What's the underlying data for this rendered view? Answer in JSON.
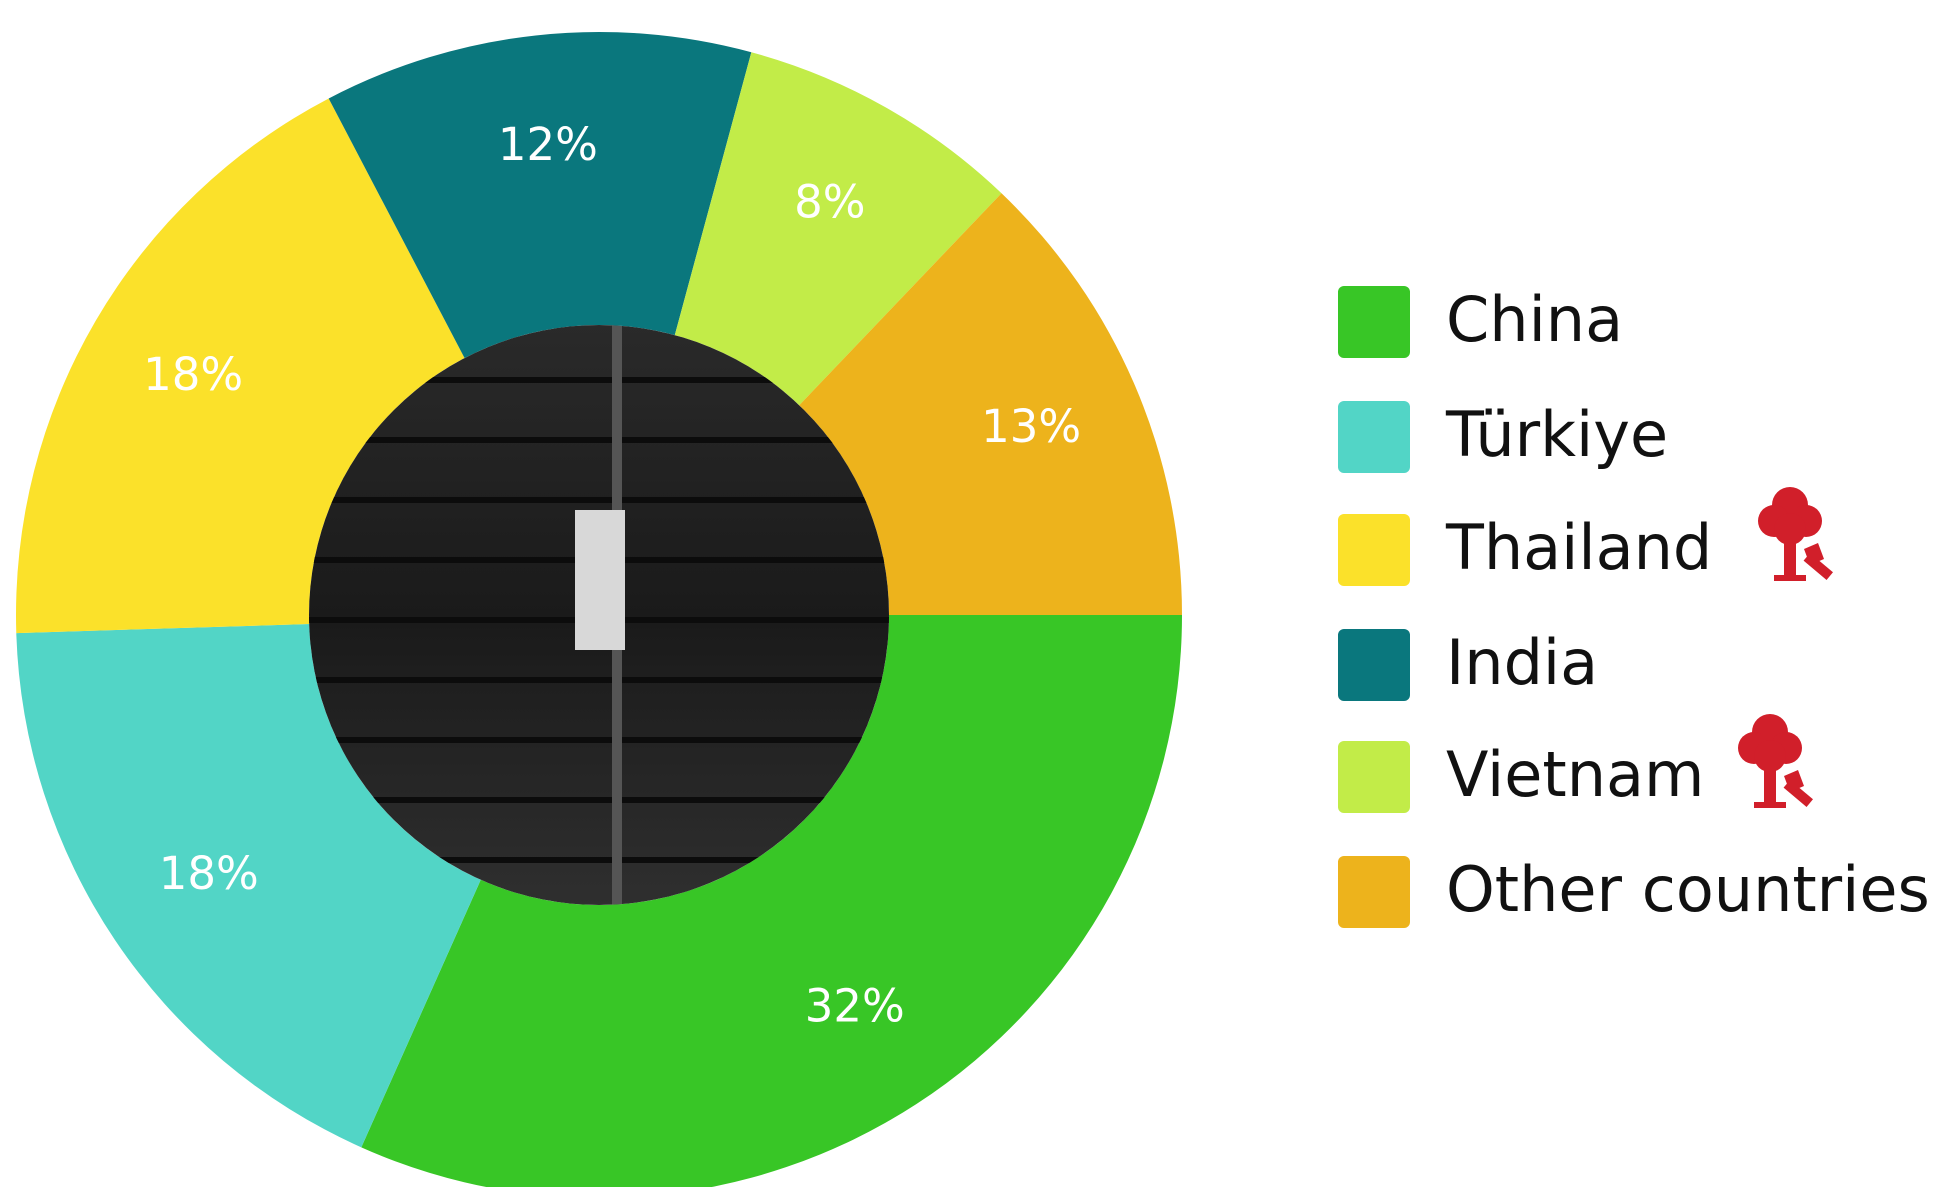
{
  "chart_data": {
    "type": "donut",
    "categories": [
      "China",
      "Türkiye",
      "Thailand",
      "India",
      "Vietnam",
      "Other countries"
    ],
    "values": [
      32,
      18,
      18,
      12,
      8,
      13
    ],
    "value_labels": [
      "32%",
      "18%",
      "18%",
      "12%",
      "8%",
      "13%"
    ],
    "colors": [
      "#38c626",
      "#52d5c6",
      "#fbe12a",
      "#0a777d",
      "#c2ec48",
      "#edb31c"
    ],
    "legend": "right"
  }
}
